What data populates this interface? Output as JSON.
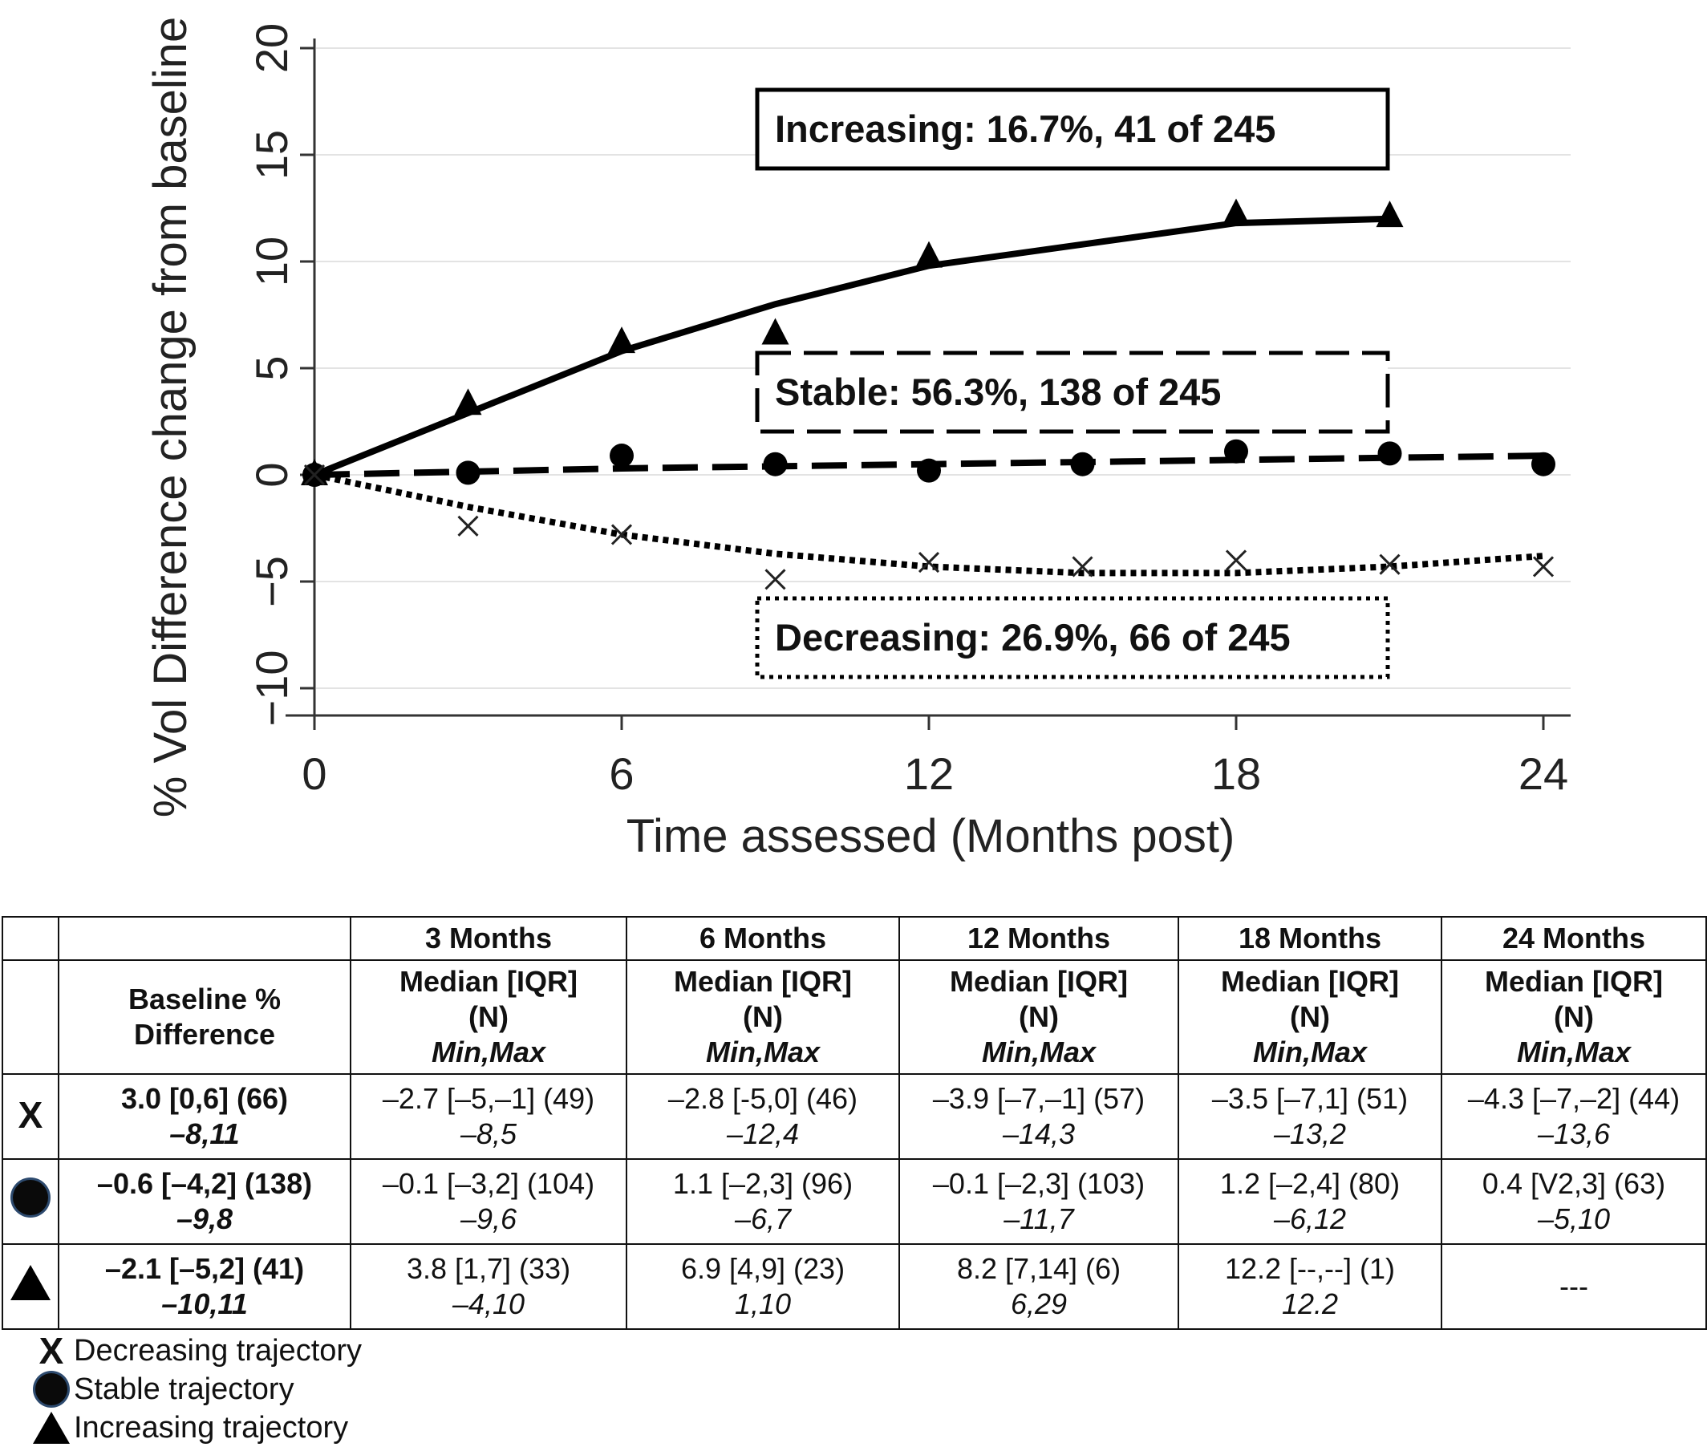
{
  "chart_data": {
    "type": "line",
    "ylabel": "% Vol Difference change from baseline",
    "xlabel": "Time assessed (Months post)",
    "xlim": [
      0,
      24
    ],
    "ylim": [
      -10,
      20
    ],
    "xticks": [
      0,
      6,
      12,
      18,
      24
    ],
    "yticks": [
      -10,
      -5,
      0,
      5,
      10,
      15,
      20
    ],
    "grid": true,
    "series": [
      {
        "key": "increasing",
        "marker": "triangle",
        "line_style": "solid",
        "points_x": [
          0,
          3,
          6,
          9,
          12,
          18,
          21
        ],
        "points_y": [
          0,
          3.3,
          6.2,
          6.6,
          10.2,
          12.2,
          12.1
        ],
        "fit_x": [
          0,
          3,
          6,
          9,
          12,
          15,
          18,
          21
        ],
        "fit_y": [
          0,
          2.9,
          5.8,
          8.0,
          9.8,
          10.8,
          11.8,
          12.0
        ]
      },
      {
        "key": "stable",
        "marker": "circle",
        "line_style": "dashed",
        "points_x": [
          0,
          3,
          6,
          9,
          12,
          15,
          18,
          21,
          24
        ],
        "points_y": [
          0,
          0.1,
          0.9,
          0.5,
          0.2,
          0.5,
          1.1,
          1.0,
          0.5
        ],
        "fit_x": [
          0,
          6,
          12,
          18,
          24
        ],
        "fit_y": [
          0,
          0.3,
          0.5,
          0.7,
          0.9
        ]
      },
      {
        "key": "decreasing",
        "marker": "x",
        "line_style": "dotted",
        "points_x": [
          0,
          3,
          6,
          9,
          12,
          15,
          18,
          21,
          24
        ],
        "points_y": [
          0,
          -2.4,
          -2.8,
          -4.9,
          -4.1,
          -4.3,
          -4.0,
          -4.2,
          -4.3
        ],
        "fit_x": [
          0,
          3,
          6,
          9,
          12,
          15,
          18,
          21,
          24
        ],
        "fit_y": [
          0,
          -1.5,
          -2.8,
          -3.7,
          -4.3,
          -4.6,
          -4.6,
          -4.3,
          -3.8
        ]
      }
    ],
    "annotations": [
      {
        "text": "Increasing: 16.7%, 41 of 245",
        "style": "solid"
      },
      {
        "text": "Stable: 56.3%, 138 of 245",
        "style": "dashed"
      },
      {
        "text": "Decreasing: 26.9%, 66 of 245",
        "style": "dotted"
      }
    ]
  },
  "table": {
    "time_headers": [
      "3 Months",
      "6 Months",
      "12 Months",
      "18 Months",
      "24 Months"
    ],
    "baseline_header_1": "Baseline %",
    "baseline_header_2": "Difference",
    "stat_line_1": "Median [IQR]",
    "stat_line_2": "(N)",
    "stat_line_3": "Min,Max",
    "rows": [
      {
        "symbol_text": "X",
        "baseline": "3.0 [0,6] (66)",
        "baseline_range": "–8,11",
        "cells": [
          {
            "main": "–2.7 [–5,–1] (49)",
            "range": "–8,5"
          },
          {
            "main": "–2.8 [-5,0] (46)",
            "range": "–12,4"
          },
          {
            "main": "–3.9 [–7,–1] (57)",
            "range": "–14,3"
          },
          {
            "main": "–3.5 [–7,1] (51)",
            "range": "–13,2"
          },
          {
            "main": "–4.3 [–7,–2] (44)",
            "range": "–13,6"
          }
        ]
      },
      {
        "symbol_text": "",
        "baseline": "–0.6 [–4,2] (138)",
        "baseline_range": "–9,8",
        "cells": [
          {
            "main": "–0.1 [–3,2] (104)",
            "range": "–9,6"
          },
          {
            "main": "1.1 [–2,3] (96)",
            "range": "–6,7"
          },
          {
            "main": "–0.1 [–2,3] (103)",
            "range": "–11,7"
          },
          {
            "main": "1.2 [–2,4] (80)",
            "range": "–6,12"
          },
          {
            "main": "0.4 [V2,3] (63)",
            "range": "–5,10"
          }
        ]
      },
      {
        "symbol_text": "",
        "baseline": "–2.1 [–5,2] (41)",
        "baseline_range": "–10,11",
        "cells": [
          {
            "main": "3.8 [1,7] (33)",
            "range": "–4,10"
          },
          {
            "main": "6.9 [4,9] (23)",
            "range": "1,10"
          },
          {
            "main": "8.2 [7,14] (6)",
            "range": "6,29"
          },
          {
            "main": "12.2 [--,--] (1)",
            "range": "12.2"
          },
          {
            "main": "---",
            "range": ""
          }
        ]
      }
    ]
  },
  "legend": {
    "x_symbol": "X",
    "decreasing": "Decreasing trajectory",
    "stable": "Stable trajectory",
    "increasing": "Increasing trajectory"
  }
}
